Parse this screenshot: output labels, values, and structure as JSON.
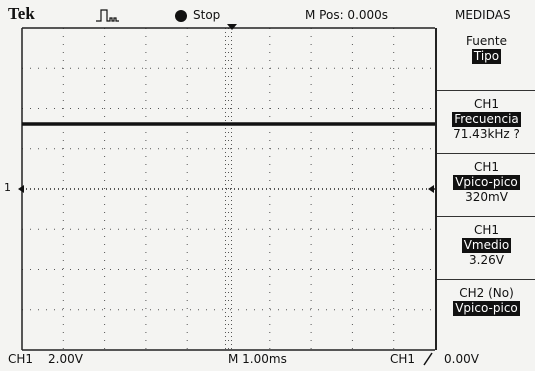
{
  "header": {
    "brand": "Tek",
    "status": "Stop",
    "position": "M Pos: 0.000s",
    "menu_title": "MEDIDAS"
  },
  "screen": {
    "channel_marker": "1"
  },
  "menu": {
    "items": [
      {
        "label": "Fuente",
        "highlight": "Tipo"
      },
      {
        "label": "CH1",
        "highlight": "Frecuencia",
        "value": "71.43kHz ?"
      },
      {
        "label": "CH1",
        "highlight": "Vpico-pico",
        "value": "320mV"
      },
      {
        "label": "CH1",
        "highlight": "Vmedio",
        "value": "3.26V"
      },
      {
        "label": "CH2 (No)",
        "highlight": "Vpico-pico"
      }
    ]
  },
  "footer": {
    "channel": "CH1",
    "volts": "2.00V",
    "timebase": "M 1.00ms",
    "trigger_source": "CH1",
    "trigger_level": "0.00V"
  }
}
